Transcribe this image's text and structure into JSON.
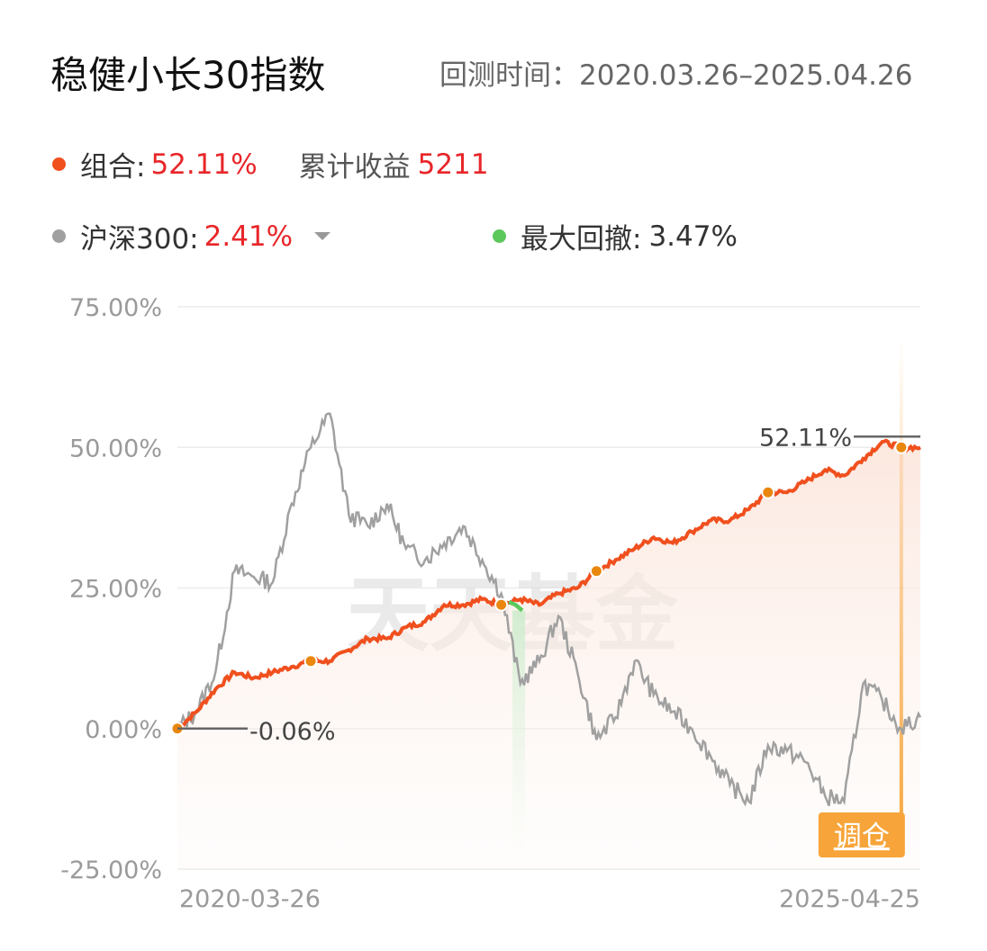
{
  "header": {
    "title": "稳健小长30指数",
    "period": "回测时间：2020.03.26–2025.04.26"
  },
  "legend": {
    "portfolio": {
      "label": "组合:",
      "value": "52.11%",
      "color": "#f0501e"
    },
    "cumulative": {
      "label": "累计收益",
      "value": "5211"
    },
    "benchmark": {
      "label": "沪深300:",
      "value": "2.41%",
      "color": "#a0a0a0",
      "dropdown_icon": "caret-down-icon"
    },
    "drawdown": {
      "label": "最大回撤:",
      "value": "3.47%",
      "color": "#5cc85c"
    }
  },
  "watermark": "天天基金",
  "rebalance_tag": "调仓",
  "chart_data": {
    "type": "line",
    "x_labels": [
      "2020-03-26",
      "2025-04-25"
    ],
    "ylim": [
      -25,
      75
    ],
    "yticks": [
      "75.00%",
      "50.00%",
      "25.00%",
      "0.00%",
      "-25.00%"
    ],
    "grid": true,
    "start_annotation": "-0.06%",
    "end_annotation": "52.11%",
    "series": [
      {
        "name": "组合",
        "color": "#f0501e",
        "values": [
          0,
          3,
          7,
          10,
          9,
          10,
          11,
          12,
          12,
          14,
          16,
          16,
          18,
          19,
          22,
          22,
          23,
          22,
          23,
          22,
          24,
          25,
          28,
          30,
          32,
          34,
          33,
          35,
          37,
          37,
          39,
          42,
          42,
          44,
          46,
          45,
          48,
          51,
          50,
          50
        ]
      },
      {
        "name": "沪深300",
        "color": "#a0a0a0",
        "values": [
          0,
          3,
          10,
          28,
          27,
          26,
          40,
          50,
          56,
          38,
          36,
          40,
          32,
          30,
          33,
          36,
          30,
          24,
          8,
          12,
          20,
          10,
          -2,
          2,
          12,
          6,
          3,
          0,
          -5,
          -10,
          -13,
          -3,
          -4,
          -6,
          -12,
          -13,
          8,
          5,
          0,
          2
        ]
      },
      {
        "name": "最大回撤",
        "color": "#5cc85c",
        "values": [
          22.5,
          22,
          21
        ]
      }
    ],
    "rebalance_markers": [
      0,
      7,
      17,
      22,
      31,
      38
    ]
  }
}
